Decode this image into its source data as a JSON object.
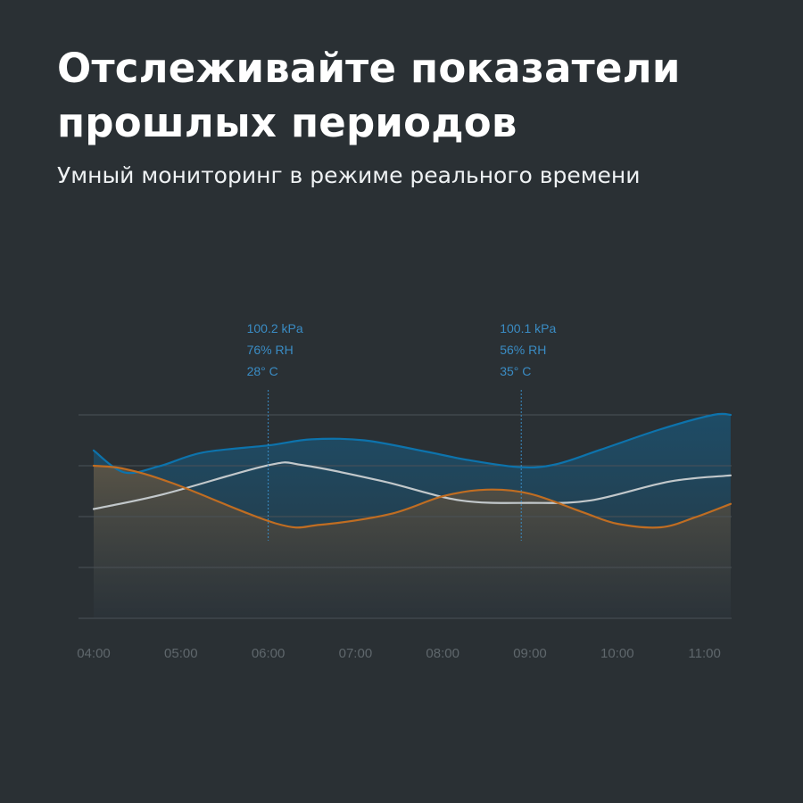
{
  "header": {
    "title": "Отслеживайте показатели прошлых периодов",
    "subtitle": "Умный мониторинг в режиме реального времени"
  },
  "colors": {
    "background": "#2a3034",
    "blue": "#0d73ac",
    "white": "#c2c8cb",
    "orange": "#c06d22",
    "annotation": "#3a8cc4",
    "grid": "#4b5257",
    "tick": "#5f676c"
  },
  "chart_data": {
    "type": "line",
    "x": [
      "04:00",
      "05:00",
      "06:00",
      "07:00",
      "08:00",
      "09:00",
      "10:00",
      "11:00"
    ],
    "ylim": [
      0,
      4
    ],
    "grid": true,
    "series": [
      {
        "color_key": "blue",
        "fill": true,
        "points": [
          [
            0.0,
            3.3
          ],
          [
            0.35,
            2.87
          ],
          [
            0.75,
            2.99
          ],
          [
            1.25,
            3.26
          ],
          [
            2.0,
            3.4
          ],
          [
            2.5,
            3.52
          ],
          [
            3.1,
            3.5
          ],
          [
            3.8,
            3.28
          ],
          [
            4.3,
            3.11
          ],
          [
            4.9,
            2.97
          ],
          [
            5.3,
            3.03
          ],
          [
            5.8,
            3.31
          ],
          [
            6.5,
            3.72
          ],
          [
            7.1,
            4.0
          ],
          [
            7.3,
            4.0
          ]
        ]
      },
      {
        "color_key": "white",
        "fill": false,
        "points": [
          [
            0.0,
            2.15
          ],
          [
            0.8,
            2.44
          ],
          [
            2.0,
            3.01
          ],
          [
            2.4,
            3.01
          ],
          [
            3.3,
            2.7
          ],
          [
            4.2,
            2.32
          ],
          [
            5.0,
            2.27
          ],
          [
            5.7,
            2.32
          ],
          [
            6.6,
            2.69
          ],
          [
            7.3,
            2.81
          ]
        ]
      },
      {
        "color_key": "orange",
        "fill": false,
        "points": [
          [
            0.0,
            3.0
          ],
          [
            0.35,
            2.94
          ],
          [
            0.9,
            2.66
          ],
          [
            2.1,
            1.86
          ],
          [
            2.6,
            1.84
          ],
          [
            3.4,
            2.05
          ],
          [
            4.0,
            2.4
          ],
          [
            4.5,
            2.53
          ],
          [
            5.0,
            2.45
          ],
          [
            5.6,
            2.09
          ],
          [
            6.0,
            1.86
          ],
          [
            6.5,
            1.79
          ],
          [
            6.9,
            1.99
          ],
          [
            7.3,
            2.25
          ]
        ]
      }
    ],
    "annotations": [
      {
        "x": 2.0,
        "lines": [
          "100.2 kPa",
          "76% RH",
          "28° C"
        ]
      },
      {
        "x": 4.9,
        "lines": [
          "100.1 kPa",
          "56% RH",
          "35° C"
        ]
      }
    ]
  }
}
